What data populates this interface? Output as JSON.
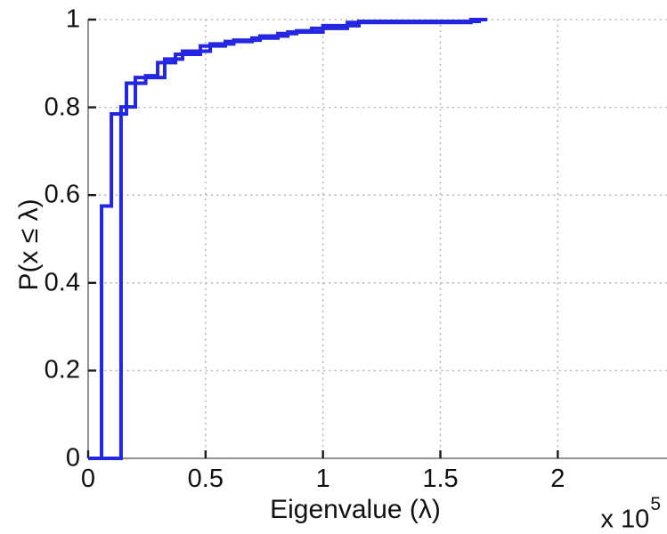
{
  "figure": {
    "xlabel": "Eigenvalue (λ)",
    "ylabel": "P(x ≤ λ)",
    "multiplier_base": "x 10",
    "multiplier_exp": "5",
    "colors": {
      "line": "#2326e3",
      "axis": "#6e6e6e",
      "tick": "#1a1a1a",
      "grid": "#b8b8b8",
      "text": "#111111",
      "background": "#ffffff"
    }
  },
  "chart_data": {
    "type": "line",
    "subtype": "ecdf-stairs",
    "title": "",
    "xlabel": "Eigenvalue (λ)",
    "ylabel": "P(x ≤ λ)",
    "x_unit_multiplier": "x 10^5",
    "xlim": [
      0,
      2.45
    ],
    "ylim": [
      0,
      1
    ],
    "xtick_values": [
      0,
      0.5,
      1,
      1.5,
      2
    ],
    "xtick_labels": [
      "0",
      "0.5",
      "1",
      "1.5",
      "2"
    ],
    "ytick_values": [
      0,
      0.2,
      0.4,
      0.6,
      0.8,
      1
    ],
    "ytick_labels": [
      "0",
      "0.2",
      "0.4",
      "0.6",
      "0.8",
      "1"
    ],
    "grid": "dotted",
    "legend": null,
    "series": [
      {
        "name": "ecdf-curve-1",
        "steps": [
          [
            0.057,
            0.575
          ],
          [
            0.099,
            0.785
          ],
          [
            0.163,
            0.855
          ],
          [
            0.245,
            0.872
          ],
          [
            0.296,
            0.902
          ],
          [
            0.372,
            0.921
          ],
          [
            0.478,
            0.94
          ],
          [
            0.584,
            0.95
          ],
          [
            0.698,
            0.958
          ],
          [
            0.808,
            0.968
          ],
          [
            0.888,
            0.9745
          ],
          [
            0.952,
            0.98
          ],
          [
            1.104,
            0.9935
          ],
          [
            1.63,
            1.0
          ]
        ],
        "end_x": 1.695
      },
      {
        "name": "ecdf-curve-2",
        "steps": [
          [
            0.14,
            0.801
          ],
          [
            0.201,
            0.868
          ],
          [
            0.326,
            0.91
          ],
          [
            0.402,
            0.928
          ],
          [
            0.52,
            0.9445
          ],
          [
            0.62,
            0.953
          ],
          [
            0.732,
            0.9625
          ],
          [
            0.85,
            0.9715
          ],
          [
            1.0,
            0.986
          ],
          [
            1.153,
            0.996
          ],
          [
            1.665,
            1.0
          ]
        ],
        "end_x": 1.7
      }
    ]
  }
}
